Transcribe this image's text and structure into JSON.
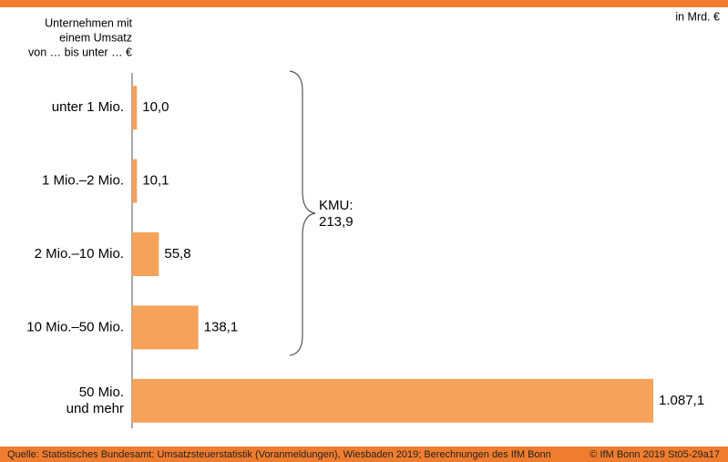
{
  "chart_data": {
    "type": "barh",
    "unit_note": "in Mrd. €",
    "axis_title": [
      "Unternehmen mit",
      "einem Umsatz",
      "von … bis unter … €"
    ],
    "categories": [
      "unter 1 Mio.",
      "1 Mio.–2 Mio.",
      "2 Mio.–10 Mio.",
      "10 Mio.–50 Mio.",
      "50 Mio.\nund mehr"
    ],
    "values": [
      10.0,
      10.1,
      55.8,
      138.1,
      1087.1
    ],
    "value_labels": [
      "10,0",
      "10,1",
      "55,8",
      "138,1",
      "1.087,1"
    ],
    "color": "#f5a25a",
    "annotation": [
      "KMU:",
      "213,9"
    ],
    "source": "Quelle: Statistisches Bundesamt: Umsatzsteuerstatistik (Voranmeldungen), Wiesbaden 2019; Berechnungen des IfM Bonn",
    "credit": "© IfM Bonn 2019 St05-29a17"
  }
}
